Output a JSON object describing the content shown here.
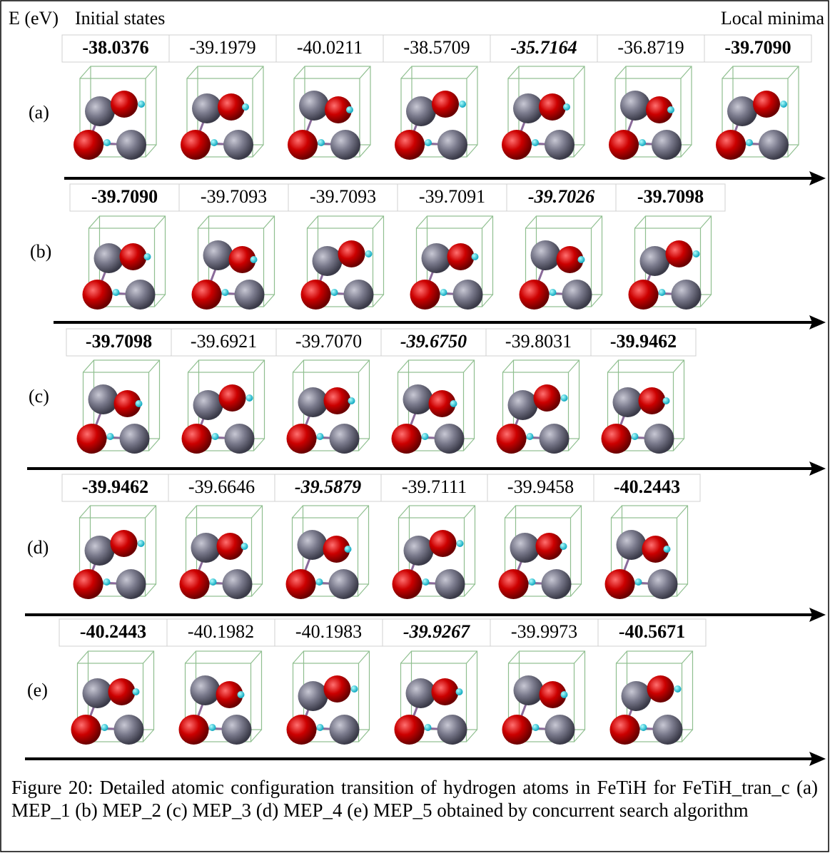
{
  "header": {
    "energy_label": "E (eV)",
    "start_label": "Initial states",
    "end_label": "Local minima"
  },
  "rows": [
    {
      "label": "(a)",
      "energies": [
        {
          "text": "-38.0376",
          "style": "bold"
        },
        {
          "text": "-39.1979",
          "style": "normal"
        },
        {
          "text": "-40.0211",
          "style": "normal"
        },
        {
          "text": "-38.5709",
          "style": "normal"
        },
        {
          "text": "-35.7164",
          "style": "bold-italic"
        },
        {
          "text": "-36.8719",
          "style": "normal"
        },
        {
          "text": "-39.7090",
          "style": "bold"
        }
      ]
    },
    {
      "label": "(b)",
      "energies": [
        {
          "text": "-39.7090",
          "style": "bold"
        },
        {
          "text": "-39.7093",
          "style": "normal"
        },
        {
          "text": "-39.7093",
          "style": "normal"
        },
        {
          "text": "-39.7091",
          "style": "normal"
        },
        {
          "text": "-39.7026",
          "style": "bold-italic"
        },
        {
          "text": "-39.7098",
          "style": "bold"
        }
      ]
    },
    {
      "label": "(c)",
      "energies": [
        {
          "text": "-39.7098",
          "style": "bold"
        },
        {
          "text": "-39.6921",
          "style": "normal"
        },
        {
          "text": "-39.7070",
          "style": "normal"
        },
        {
          "text": "-39.6750",
          "style": "bold-italic"
        },
        {
          "text": "-39.8031",
          "style": "normal"
        },
        {
          "text": "-39.9462",
          "style": "bold"
        }
      ]
    },
    {
      "label": "(d)",
      "energies": [
        {
          "text": "-39.9462",
          "style": "bold"
        },
        {
          "text": "-39.6646",
          "style": "normal"
        },
        {
          "text": "-39.5879",
          "style": "bold-italic"
        },
        {
          "text": "-39.7111",
          "style": "normal"
        },
        {
          "text": "-39.9458",
          "style": "normal"
        },
        {
          "text": "-40.2443",
          "style": "bold"
        }
      ]
    },
    {
      "label": "(e)",
      "energies": [
        {
          "text": "-40.2443",
          "style": "bold"
        },
        {
          "text": "-40.1982",
          "style": "normal"
        },
        {
          "text": "-40.1983",
          "style": "normal"
        },
        {
          "text": "-39.9267",
          "style": "bold-italic"
        },
        {
          "text": "-39.9973",
          "style": "normal"
        },
        {
          "text": "-40.5671",
          "style": "bold"
        }
      ]
    }
  ],
  "caption": "Figure 20: Detailed atomic configuration transition of hydrogen atoms in FeTiH for FeTiH_tran_c (a) MEP_1 (b) MEP_2 (c) MEP_3 (d) MEP_4 (e) MEP_5 obtained by concurrent search algorithm"
}
